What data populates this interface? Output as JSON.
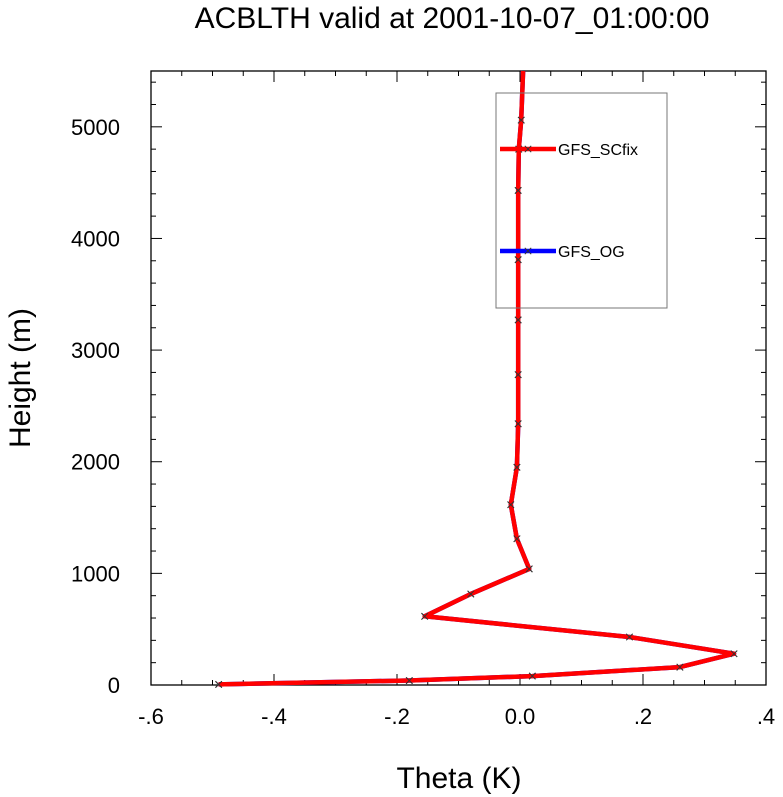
{
  "chart_data": {
    "type": "line",
    "title": "ACBLTH valid at 2001-10-07_01:00:00",
    "xlabel": "Theta (K)",
    "ylabel": "Height (m)",
    "xlim": [
      -0.6,
      0.4
    ],
    "ylim": [
      0,
      5500
    ],
    "x_ticks": [
      -0.6,
      -0.4,
      -0.2,
      0.0,
      0.2,
      0.4
    ],
    "x_tick_labels": [
      "-.6",
      "-.4",
      "-.2",
      "0.0",
      ".2",
      ".4"
    ],
    "y_ticks": [
      0,
      1000,
      2000,
      3000,
      4000,
      5000
    ],
    "y_tick_labels": [
      "0",
      "1000",
      "2000",
      "3000",
      "4000",
      "5000"
    ],
    "legend_position": "top-right",
    "series": [
      {
        "name": "GFS_SCfix",
        "color": "#ff0000",
        "marker": "x",
        "x": [
          -0.49,
          -0.18,
          0.02,
          0.26,
          0.348,
          0.178,
          -0.155,
          -0.08,
          0.015,
          -0.005,
          -0.015,
          -0.005,
          -0.003,
          -0.003,
          -0.003,
          -0.003,
          -0.003,
          -0.002,
          0.002,
          0.005
        ],
        "y": [
          5,
          40,
          80,
          160,
          280,
          430,
          615,
          815,
          1040,
          1310,
          1615,
          1950,
          2340,
          2780,
          3270,
          3810,
          4430,
          4800,
          5060,
          5500
        ]
      },
      {
        "name": "GFS_OG",
        "color": "#0000ff",
        "marker": "x",
        "x": [
          -0.49,
          -0.18,
          0.02,
          0.26,
          0.348,
          0.178,
          -0.155,
          -0.08,
          0.015,
          -0.005,
          -0.015,
          -0.005,
          -0.003,
          -0.003,
          -0.003,
          -0.003,
          -0.003,
          -0.002,
          0.002,
          0.005
        ],
        "y": [
          5,
          40,
          80,
          160,
          280,
          430,
          615,
          815,
          1040,
          1310,
          1615,
          1950,
          2340,
          2780,
          3270,
          3810,
          4430,
          4800,
          5060,
          5500
        ]
      }
    ]
  }
}
